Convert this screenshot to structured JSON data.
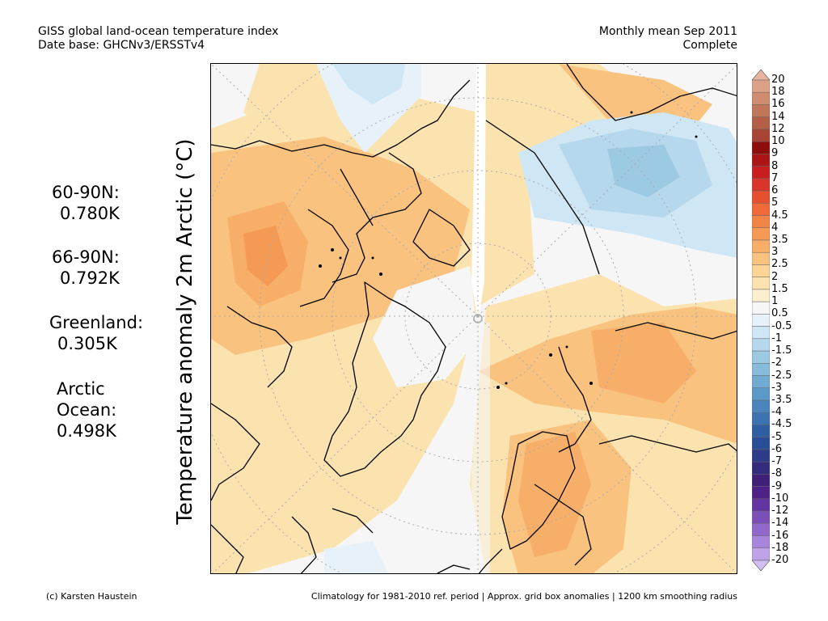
{
  "header": {
    "left_line1": "GISS global land-ocean temperature index",
    "left_line2": "Date base: GHCNv3/ERSSTv4",
    "right_line1": "Monthly mean Sep 2011",
    "right_line2": "Complete"
  },
  "axis_label": "Temperature anomaly 2m Arctic (°C)",
  "stats": [
    {
      "label": "60-90N:",
      "value": "0.780K"
    },
    {
      "label": "66-90N:",
      "value": "0.792K"
    },
    {
      "label": "Greenland:",
      "value": "0.305K"
    },
    {
      "label": "Arctic",
      "label2": "Ocean:",
      "value": "0.498K"
    }
  ],
  "colorbar": {
    "labels": [
      "20",
      "18",
      "16",
      "14",
      "12",
      "10",
      "9",
      "8",
      "7",
      "6",
      "5",
      "4.5",
      "4",
      "3.5",
      "3",
      "2.5",
      "2",
      "1.5",
      "1",
      "0.5",
      "-0.5",
      "-1",
      "-1.5",
      "-2",
      "-2.5",
      "-3",
      "-3.5",
      "-4",
      "-4.5",
      "-5",
      "-6",
      "-7",
      "-8",
      "-9",
      "-10",
      "-12",
      "-14",
      "-16",
      "-18",
      "-20"
    ],
    "colors": [
      "#e8b4a0",
      "#dca086",
      "#cf8c6e",
      "#c07659",
      "#b25f46",
      "#a84434",
      "#8e0c0c",
      "#ad1414",
      "#c81e1e",
      "#d9352a",
      "#e6502e",
      "#ef6a38",
      "#f28446",
      "#f59a55",
      "#f7ae68",
      "#f9c27f",
      "#fad596",
      "#fbe3b0",
      "#fcefce",
      "#f6f6f6",
      "#e7f1fa",
      "#cfe6f4",
      "#b5d8ec",
      "#9dcae3",
      "#86bbdb",
      "#70abd2",
      "#5b99c8",
      "#4a86bd",
      "#3b72b0",
      "#2e5fa3",
      "#294d96",
      "#2c3c88",
      "#332b7c",
      "#3f1f78",
      "#4e2188",
      "#6235a1",
      "#7a50b8",
      "#9169cc",
      "#a785dc",
      "#bfa3e8",
      "#d2bef0"
    ]
  },
  "footer": {
    "left": "(c) Karsten Haustein",
    "right": "Climatology for 1981-2010 ref. period | Approx. grid box anomalies | 1200 km smoothing radius"
  }
}
